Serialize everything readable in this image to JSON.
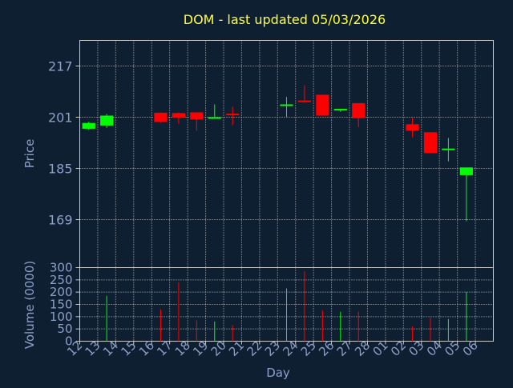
{
  "chart_data": {
    "type": "candlestick",
    "title": "DOM - last updated 05/03/2026",
    "xlabel": "Day",
    "price_panel": {
      "ylabel": "Price",
      "ylim": [
        154,
        225
      ],
      "yticks": [
        169,
        185,
        201,
        217
      ],
      "grid": true
    },
    "volume_panel": {
      "ylabel": "Volume (0000)",
      "ylim": [
        0,
        300
      ],
      "yticks": [
        0,
        50,
        100,
        150,
        200,
        250,
        300
      ],
      "grid": true
    },
    "x_tick_labels": [
      "12",
      "13",
      "14",
      "15",
      "16",
      "17",
      "18",
      "19",
      "20",
      "21",
      "22",
      "23",
      "24",
      "25",
      "26",
      "27",
      "28",
      "01",
      "02",
      "03",
      "04",
      "05",
      "06"
    ],
    "candles": [
      {
        "x": "12",
        "open": 197.4,
        "close": 199.2,
        "high": 199.6,
        "low": 197.0,
        "volume": 0
      },
      {
        "x": "13",
        "open": 198.4,
        "close": 201.5,
        "high": 202.0,
        "low": 197.7,
        "volume": 185
      },
      {
        "x": "16",
        "open": 202.4,
        "close": 199.5,
        "high": 202.5,
        "low": 199.3,
        "volume": 130
      },
      {
        "x": "17",
        "open": 202.3,
        "close": 200.9,
        "high": 202.5,
        "low": 198.9,
        "volume": 240
      },
      {
        "x": "18",
        "open": 202.5,
        "close": 200.3,
        "high": 202.5,
        "low": 196.8,
        "volume": 85
      },
      {
        "x": "19",
        "open": 201.0,
        "close": 201.0,
        "high": 205.0,
        "low": 201.0,
        "volume": 80
      },
      {
        "x": "20",
        "open": 202.1,
        "close": 202.0,
        "high": 204.3,
        "low": 198.5,
        "volume": 65
      },
      {
        "x": "23",
        "open": 205.0,
        "close": 205.0,
        "high": 207.3,
        "low": 201.1,
        "volume": 215
      },
      {
        "x": "24",
        "open": 206.2,
        "close": 205.9,
        "high": 211.0,
        "low": 205.5,
        "volume": 285
      },
      {
        "x": "25",
        "open": 208.0,
        "close": 201.5,
        "high": 208.0,
        "low": 201.5,
        "volume": 125
      },
      {
        "x": "26",
        "open": 203.1,
        "close": 203.6,
        "high": 203.6,
        "low": 202.7,
        "volume": 120
      },
      {
        "x": "27",
        "open": 205.4,
        "close": 200.7,
        "high": 205.4,
        "low": 197.9,
        "volume": 120
      },
      {
        "x": "02",
        "open": 198.8,
        "close": 196.8,
        "high": 200.8,
        "low": 194.7,
        "volume": 60
      },
      {
        "x": "03",
        "open": 196.3,
        "close": 189.8,
        "high": 196.3,
        "low": 189.8,
        "volume": 95
      },
      {
        "x": "04",
        "open": 190.9,
        "close": 191.2,
        "high": 194.5,
        "low": 187.2,
        "volume": 90
      },
      {
        "x": "05",
        "open": 182.9,
        "close": 185.3,
        "high": 185.3,
        "low": 168.5,
        "volume": 200
      }
    ],
    "colors": {
      "background": "#0f1f32",
      "grid": "#c8c8c8",
      "axis_text": "#8aa0c8",
      "title": "#ffff33",
      "up": "#00ff00",
      "down": "#ff0000"
    }
  }
}
